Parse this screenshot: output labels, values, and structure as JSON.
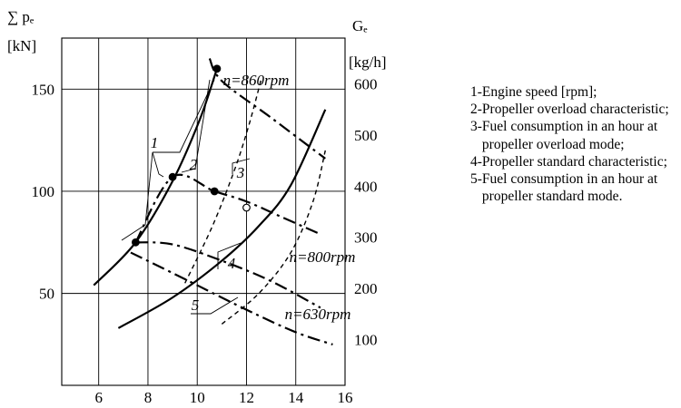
{
  "chart_data": {
    "type": "line",
    "x_ticks": [
      "6",
      "8",
      "10",
      "12",
      "14",
      "16"
    ],
    "xlim": [
      4.5,
      16
    ],
    "y_left": {
      "label_symbol": "∑ pₑ",
      "unit": "[kN]",
      "ticks": [
        "50",
        "100",
        "150"
      ],
      "range": [
        5,
        175
      ]
    },
    "y_right": {
      "label_symbol": "Gₑ",
      "unit": "[kg/h]",
      "ticks": [
        "100",
        "200",
        "300",
        "400",
        "500",
        "600"
      ],
      "range": [
        10,
        690
      ]
    },
    "grid": true,
    "series": [
      {
        "id": "1",
        "style": "solid-bold",
        "axis": "left",
        "x": [
          5.8,
          7.5,
          9.0,
          10.1,
          10.8
        ],
        "y": [
          54,
          75,
          105,
          135,
          160
        ]
      },
      {
        "id": "2",
        "style": "dash-dot",
        "axis": "left",
        "x": [
          7.5,
          9.0,
          10.7,
          12.0,
          13.5,
          15.0
        ],
        "y": [
          75,
          107,
          100,
          95,
          87,
          79
        ]
      },
      {
        "id": "3",
        "style": "dashed",
        "axis": "right",
        "x": [
          9.5,
          10.6,
          11.5,
          12.1,
          12.6
        ],
        "y": [
          210,
          320,
          430,
          520,
          610
        ]
      },
      {
        "id": "4",
        "style": "solid-bold",
        "axis": "left",
        "x": [
          6.8,
          9.0,
          11.0,
          12.5,
          13.8,
          15.2
        ],
        "y": [
          33,
          48,
          66,
          83,
          103,
          140
        ]
      },
      {
        "id": "5",
        "style": "dashed",
        "axis": "right",
        "x": [
          11.0,
          12.5,
          13.8,
          14.7,
          15.2
        ],
        "y": [
          130,
          190,
          270,
          370,
          470
        ]
      }
    ],
    "rpm_lines": [
      {
        "label": "n=860rpm",
        "axis": "left",
        "x": [
          10.5,
          11.0,
          13.0,
          15.2
        ],
        "y": [
          165,
          154,
          136,
          116
        ]
      },
      {
        "label": "n=800rpm",
        "axis": "left",
        "x": [
          7.5,
          9.0,
          11.0,
          13.0,
          15.0
        ],
        "y": [
          75,
          74,
          66,
          56,
          43
        ]
      },
      {
        "label": "n=630rpm",
        "axis": "left",
        "x": [
          7.3,
          9.5,
          12.0,
          14.0,
          15.5
        ],
        "y": [
          70,
          57,
          42,
          31,
          25
        ]
      }
    ],
    "points": [
      {
        "x": 7.5,
        "y": 75,
        "filled": true
      },
      {
        "x": 9.0,
        "y": 107,
        "filled": true
      },
      {
        "x": 10.7,
        "y": 100,
        "filled": true
      },
      {
        "x": 10.8,
        "y": 160,
        "filled": true
      },
      {
        "x": 12.0,
        "y": 92,
        "filled": false
      }
    ],
    "curve_labels": [
      "1",
      "2",
      "3",
      "4",
      "5"
    ],
    "legend": [
      {
        "num": "1-",
        "text": "Engine speed [rpm];"
      },
      {
        "num": "2-",
        "text": "Propeller overload characteristic;"
      },
      {
        "num": "3-",
        "text": "Fuel consumption in an hour at propeller overload mode;"
      },
      {
        "num": "4-",
        "text": "Propeller standard characteristic;"
      },
      {
        "num": "5-",
        "text": "Fuel consumption in an hour at propeller standard mode."
      }
    ]
  }
}
